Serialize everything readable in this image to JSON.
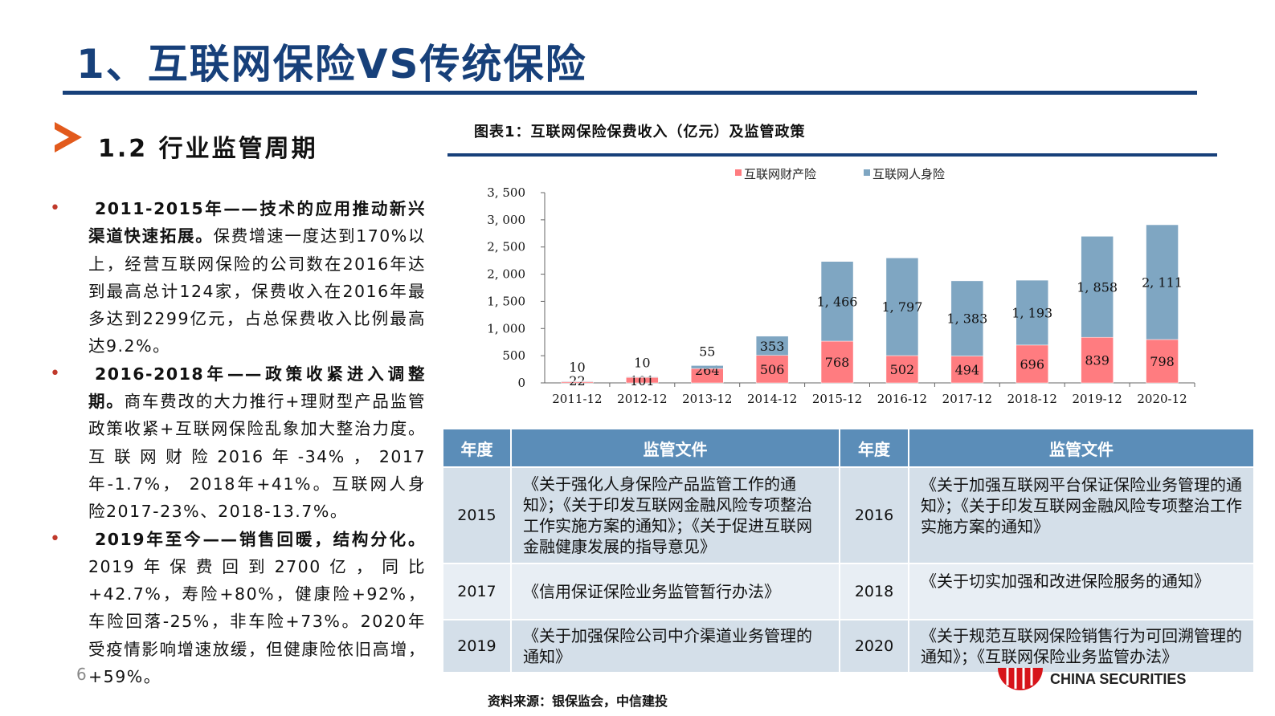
{
  "title": "1、互联网保险VS传统保险",
  "section": "1.2 行业监管周期",
  "page_number": "6",
  "bullets": [
    {
      "head": "2011-2015年——技术的应用推动新兴渠道快速拓展。",
      "text": "保费增速一度达到170%以上，经营互联网保险的公司数在2016年达到最高总计124家，保费收入在2016年最多达到2299亿元，占总保费收入比例最高达9.2%。"
    },
    {
      "head": "2016-2018年——政策收紧进入调整期。",
      "text": "商车费改的大力推行+理财型产品监管政策收紧+互联网保险乱象加大整治力度。互联网财险2016年-34%，2017年-1.7%， 2018年+41%。互联网人身险2017-23%、2018-13.7%。"
    },
    {
      "head": "2019年至今——销售回暖，结构分化。",
      "text": "2019年保费回到2700亿，同比+42.7%，寿险+80%，健康险+92%，车险回落-25%，非车险+73%。2020年受疫情影响增速放缓，但健康险依旧高增，+59%。"
    }
  ],
  "chart_data": {
    "type": "bar",
    "stacked": true,
    "title": "图表1：互联网保险保费收入（亿元）及监管政策",
    "categories": [
      "2011-12",
      "2012-12",
      "2013-12",
      "2014-12",
      "2015-12",
      "2016-12",
      "2017-12",
      "2018-12",
      "2019-12",
      "2020-12"
    ],
    "series": [
      {
        "name": "互联网财产险",
        "color": "#ff7c80",
        "values": [
          22,
          101,
          264,
          506,
          768,
          502,
          494,
          696,
          839,
          798
        ],
        "labels": [
          "22",
          "101",
          "264",
          "506",
          "768",
          "502",
          "494",
          "696",
          "839",
          "798"
        ]
      },
      {
        "name": "互联网人身险",
        "color": "#7fa6c2",
        "values": [
          10,
          10,
          55,
          353,
          1466,
          1797,
          1383,
          1193,
          1858,
          2111
        ],
        "labels": [
          "10",
          "10",
          "55",
          "353",
          "1, 466",
          "1, 797",
          "1, 383",
          "1, 193",
          "1, 858",
          "2, 111"
        ]
      }
    ],
    "ylim": [
      0,
      3500
    ],
    "yticks": [
      0,
      500,
      1000,
      1500,
      2000,
      2500,
      3000,
      3500
    ],
    "ytick_labels": [
      "0",
      "500",
      "1, 000",
      "1, 500",
      "2, 000",
      "2, 500",
      "3, 000",
      "3, 500"
    ],
    "legend": "top",
    "grid": false
  },
  "table": {
    "headers": [
      "年度",
      "监管文件",
      "年度",
      "监管文件"
    ],
    "rows": [
      [
        "2015",
        "《关于强化人身保险产品监管工作的通知》；《关于印发互联网金融风险专项整治工作实施方案的通知》；《关于促进互联网金融健康发展的指导意见》",
        "2016",
        "《关于加强互联网平台保证保险业务管理的通知》；《关于印发互联网金融风险专项整治工作实施方案的通知》"
      ],
      [
        "2017",
        "《信用保证保险业务监管暂行办法》",
        "2018",
        "《关于切实加强和改进保险服务的通知》"
      ],
      [
        "2019",
        "《关于加强保险公司中介渠道业务管理的通知》",
        "2020",
        "《关于规范互联网保险销售行为可回溯管理的通知》；《互联网保险业务监管办法》"
      ]
    ]
  },
  "source": "资料来源：银保监会，中信建投",
  "logo_text": "CHINA SECURITIES"
}
